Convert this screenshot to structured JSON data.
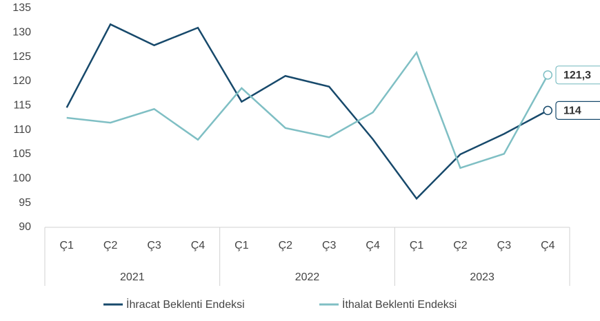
{
  "chart_data": {
    "type": "line",
    "categories": [
      "Ç1",
      "Ç2",
      "Ç3",
      "Ç4",
      "Ç1",
      "Ç2",
      "Ç3",
      "Ç4",
      "Ç1",
      "Ç2",
      "Ç3",
      "Ç4"
    ],
    "groups": [
      "2021",
      "2022",
      "2023"
    ],
    "series": [
      {
        "name": "İhracat Beklenti Endeksi",
        "color": "#17496b",
        "values": [
          114.6,
          131.7,
          127.4,
          131.0,
          115.8,
          121.1,
          118.9,
          108.1,
          95.9,
          105.0,
          109.2,
          114
        ],
        "value_labels": [
          null,
          null,
          null,
          null,
          null,
          null,
          null,
          null,
          null,
          null,
          null,
          "114"
        ]
      },
      {
        "name": "İthalat Beklenti Endeksi",
        "color": "#7fbfc4",
        "values": [
          112.5,
          111.5,
          114.3,
          108.0,
          118.6,
          110.4,
          108.5,
          113.6,
          125.9,
          102.2,
          105.1,
          121.3
        ],
        "value_labels": [
          null,
          null,
          null,
          null,
          null,
          null,
          null,
          null,
          null,
          null,
          null,
          "121,3"
        ]
      }
    ],
    "ylim": [
      90,
      135
    ],
    "yticks": [
      90,
      95,
      100,
      105,
      110,
      115,
      120,
      125,
      130,
      135
    ],
    "grid": false
  }
}
